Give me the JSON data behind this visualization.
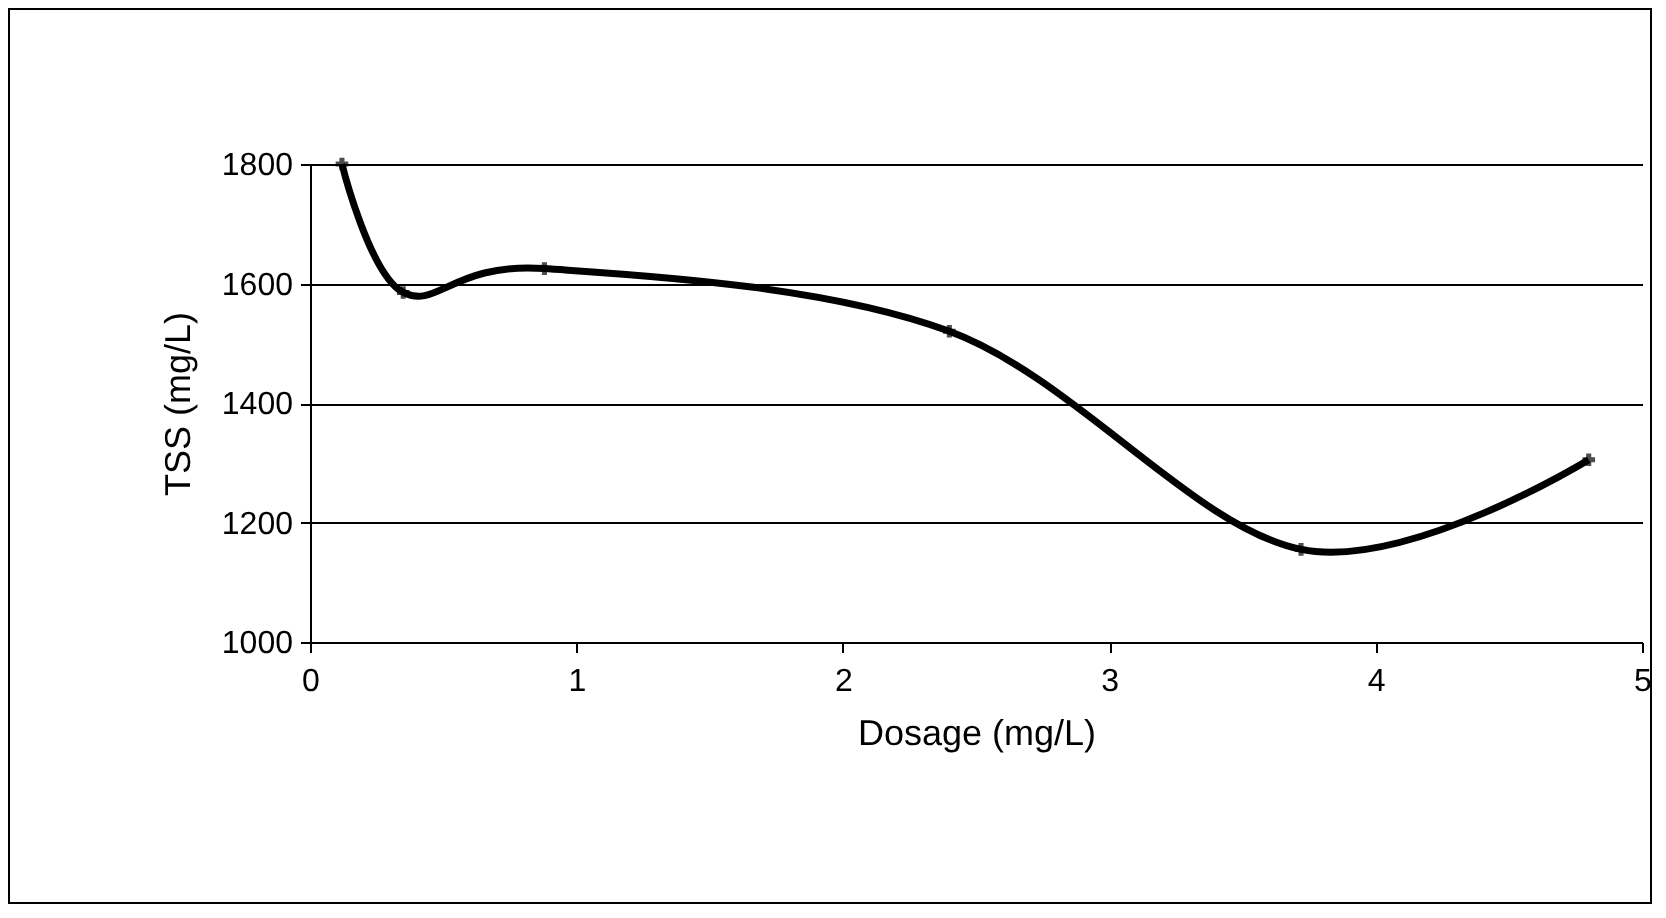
{
  "chart_data": {
    "type": "line",
    "xlabel": "Dosage (mg/L)",
    "ylabel": "TSS (mg/L)",
    "x": [
      0.12,
      0.35,
      0.88,
      2.4,
      3.72,
      4.8
    ],
    "series": [
      {
        "color": "#000000",
        "values": [
          1800,
          1585,
          1625,
          1520,
          1155,
          1305
        ]
      }
    ],
    "xlim": [
      0,
      5
    ],
    "xticks": [
      0,
      1,
      2,
      3,
      4,
      5
    ],
    "ylim": [
      1000,
      1800
    ],
    "yticks": [
      1000,
      1200,
      1400,
      1600,
      1800
    ],
    "grid": "y",
    "marker": "cross",
    "line_style": "solid"
  }
}
